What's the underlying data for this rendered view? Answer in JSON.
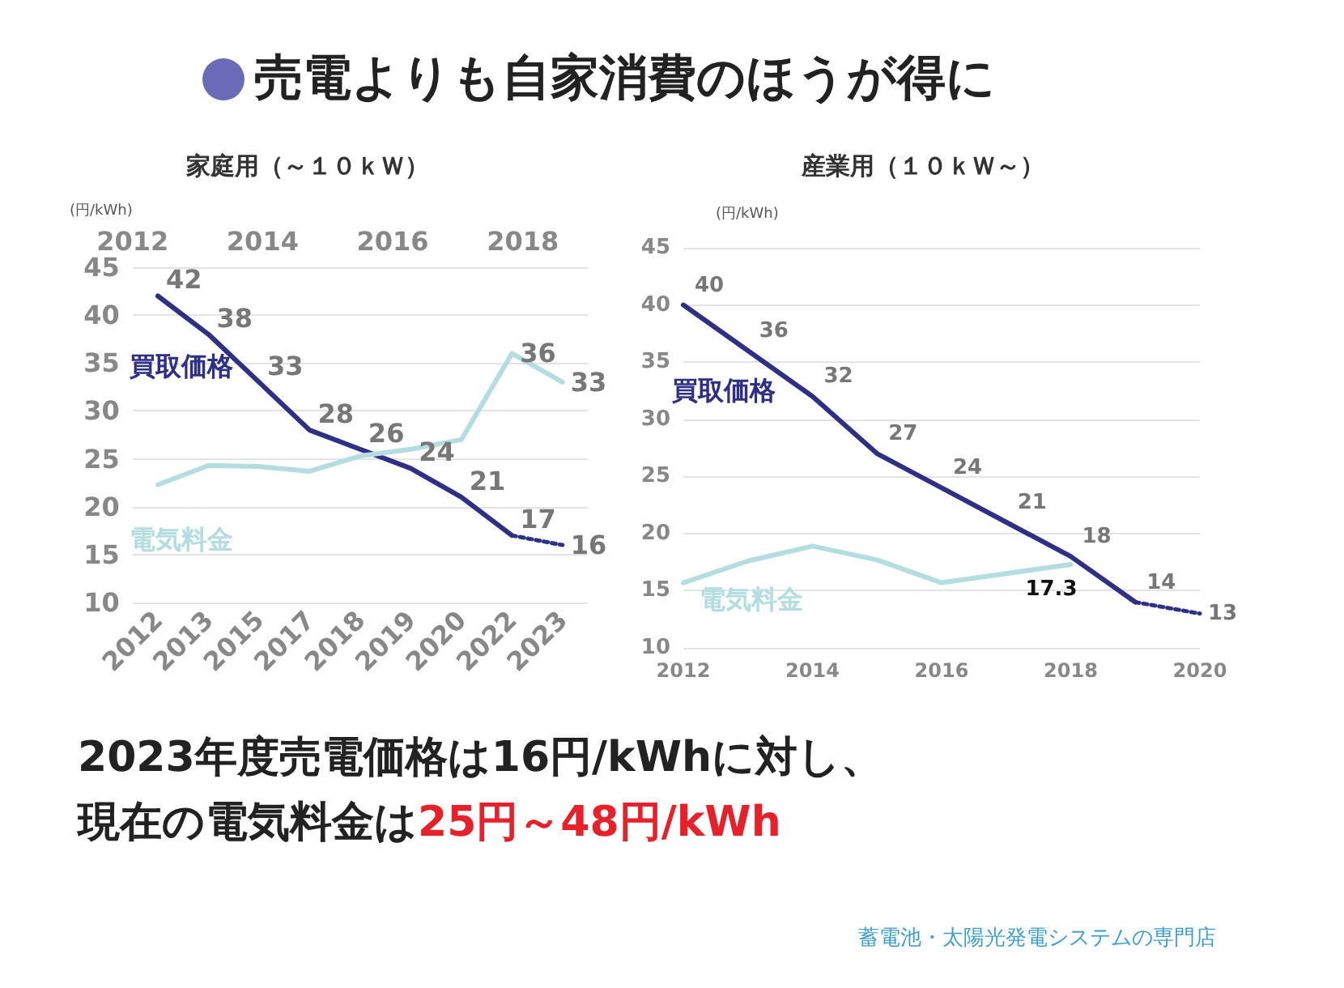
{
  "chart_data": [
    {
      "type": "line",
      "title": "家庭用（～１０ｋＷ）",
      "ylabel": "(円/kWh)",
      "categories": [
        "2012",
        "2013",
        "2015",
        "2017",
        "2018",
        "2019",
        "2020",
        "2022",
        "2023"
      ],
      "x2lim": [
        2012,
        2019
      ],
      "x2ticks": [
        2012,
        2014,
        2016,
        2018
      ],
      "ylim": [
        10,
        45
      ],
      "yticks": [
        10,
        15,
        20,
        25,
        30,
        35,
        40,
        45
      ],
      "grid": "y",
      "legend": false,
      "marker": "none",
      "series": [
        {
          "name": "買取価格",
          "color": "#2e3087",
          "line_style": "solid",
          "values": [
            42,
            38,
            33,
            28,
            26,
            24,
            21,
            17,
            null
          ],
          "value_labels": [
            "42",
            "38",
            "33",
            "28",
            "26",
            "24",
            "21",
            "17",
            null
          ]
        },
        {
          "color": "#2e3087",
          "line_style": "dotted",
          "values": [
            null,
            null,
            null,
            null,
            null,
            null,
            null,
            17,
            16
          ],
          "value_labels": [
            null,
            null,
            null,
            null,
            null,
            null,
            null,
            null,
            "16"
          ]
        },
        {
          "name": "電気料金",
          "color": "#b3dde0",
          "line_style": "solid",
          "values": [
            22.3,
            24.3,
            24.2,
            23.7,
            25.3,
            26,
            27,
            36,
            33
          ],
          "value_labels": [
            null,
            null,
            null,
            null,
            null,
            null,
            null,
            "36",
            "33"
          ]
        }
      ],
      "annotations": [
        "売電よりも自家消費のほうが得に",
        "2023年度売電価格は16円/kWhに対し、",
        "現在の電気料金は",
        "25円～48円/kWh",
        "蓄電池・太陽光発電システムの専門店"
      ]
    },
    {
      "type": "line",
      "title": "産業用（１０ｋＷ～）",
      "ylabel": "(円/kWh)",
      "xlim": [
        2012,
        2020
      ],
      "xticks": [
        2012,
        2014,
        2016,
        2018,
        2020
      ],
      "ylim": [
        10,
        45
      ],
      "yticks": [
        10,
        15,
        20,
        25,
        30,
        35,
        40,
        45
      ],
      "grid": "y",
      "legend": false,
      "marker": "none",
      "series": [
        {
          "name": "買取価格",
          "color": "#2e3087",
          "line_style": "solid",
          "x": [
            2012,
            2013,
            2014,
            2015,
            2016,
            2017,
            2018,
            2019
          ],
          "values": [
            40,
            36,
            32,
            27,
            24,
            21,
            18,
            14
          ],
          "value_labels": [
            "40",
            "36",
            "32",
            "27",
            "24",
            "21",
            "18",
            "14"
          ]
        },
        {
          "color": "#2e3087",
          "line_style": "dotted",
          "x": [
            2019,
            2020
          ],
          "values": [
            14,
            13
          ],
          "value_labels": [
            null,
            "13"
          ]
        },
        {
          "name": "電気料金",
          "color": "#b3dde0",
          "line_style": "solid",
          "x": [
            2012,
            2013,
            2014,
            2015,
            2016,
            2018
          ],
          "values": [
            15.7,
            17.6,
            18.9,
            17.7,
            15.7,
            17.3
          ],
          "value_labels": [
            null,
            null,
            null,
            null,
            null,
            "17.3"
          ]
        }
      ]
    }
  ]
}
